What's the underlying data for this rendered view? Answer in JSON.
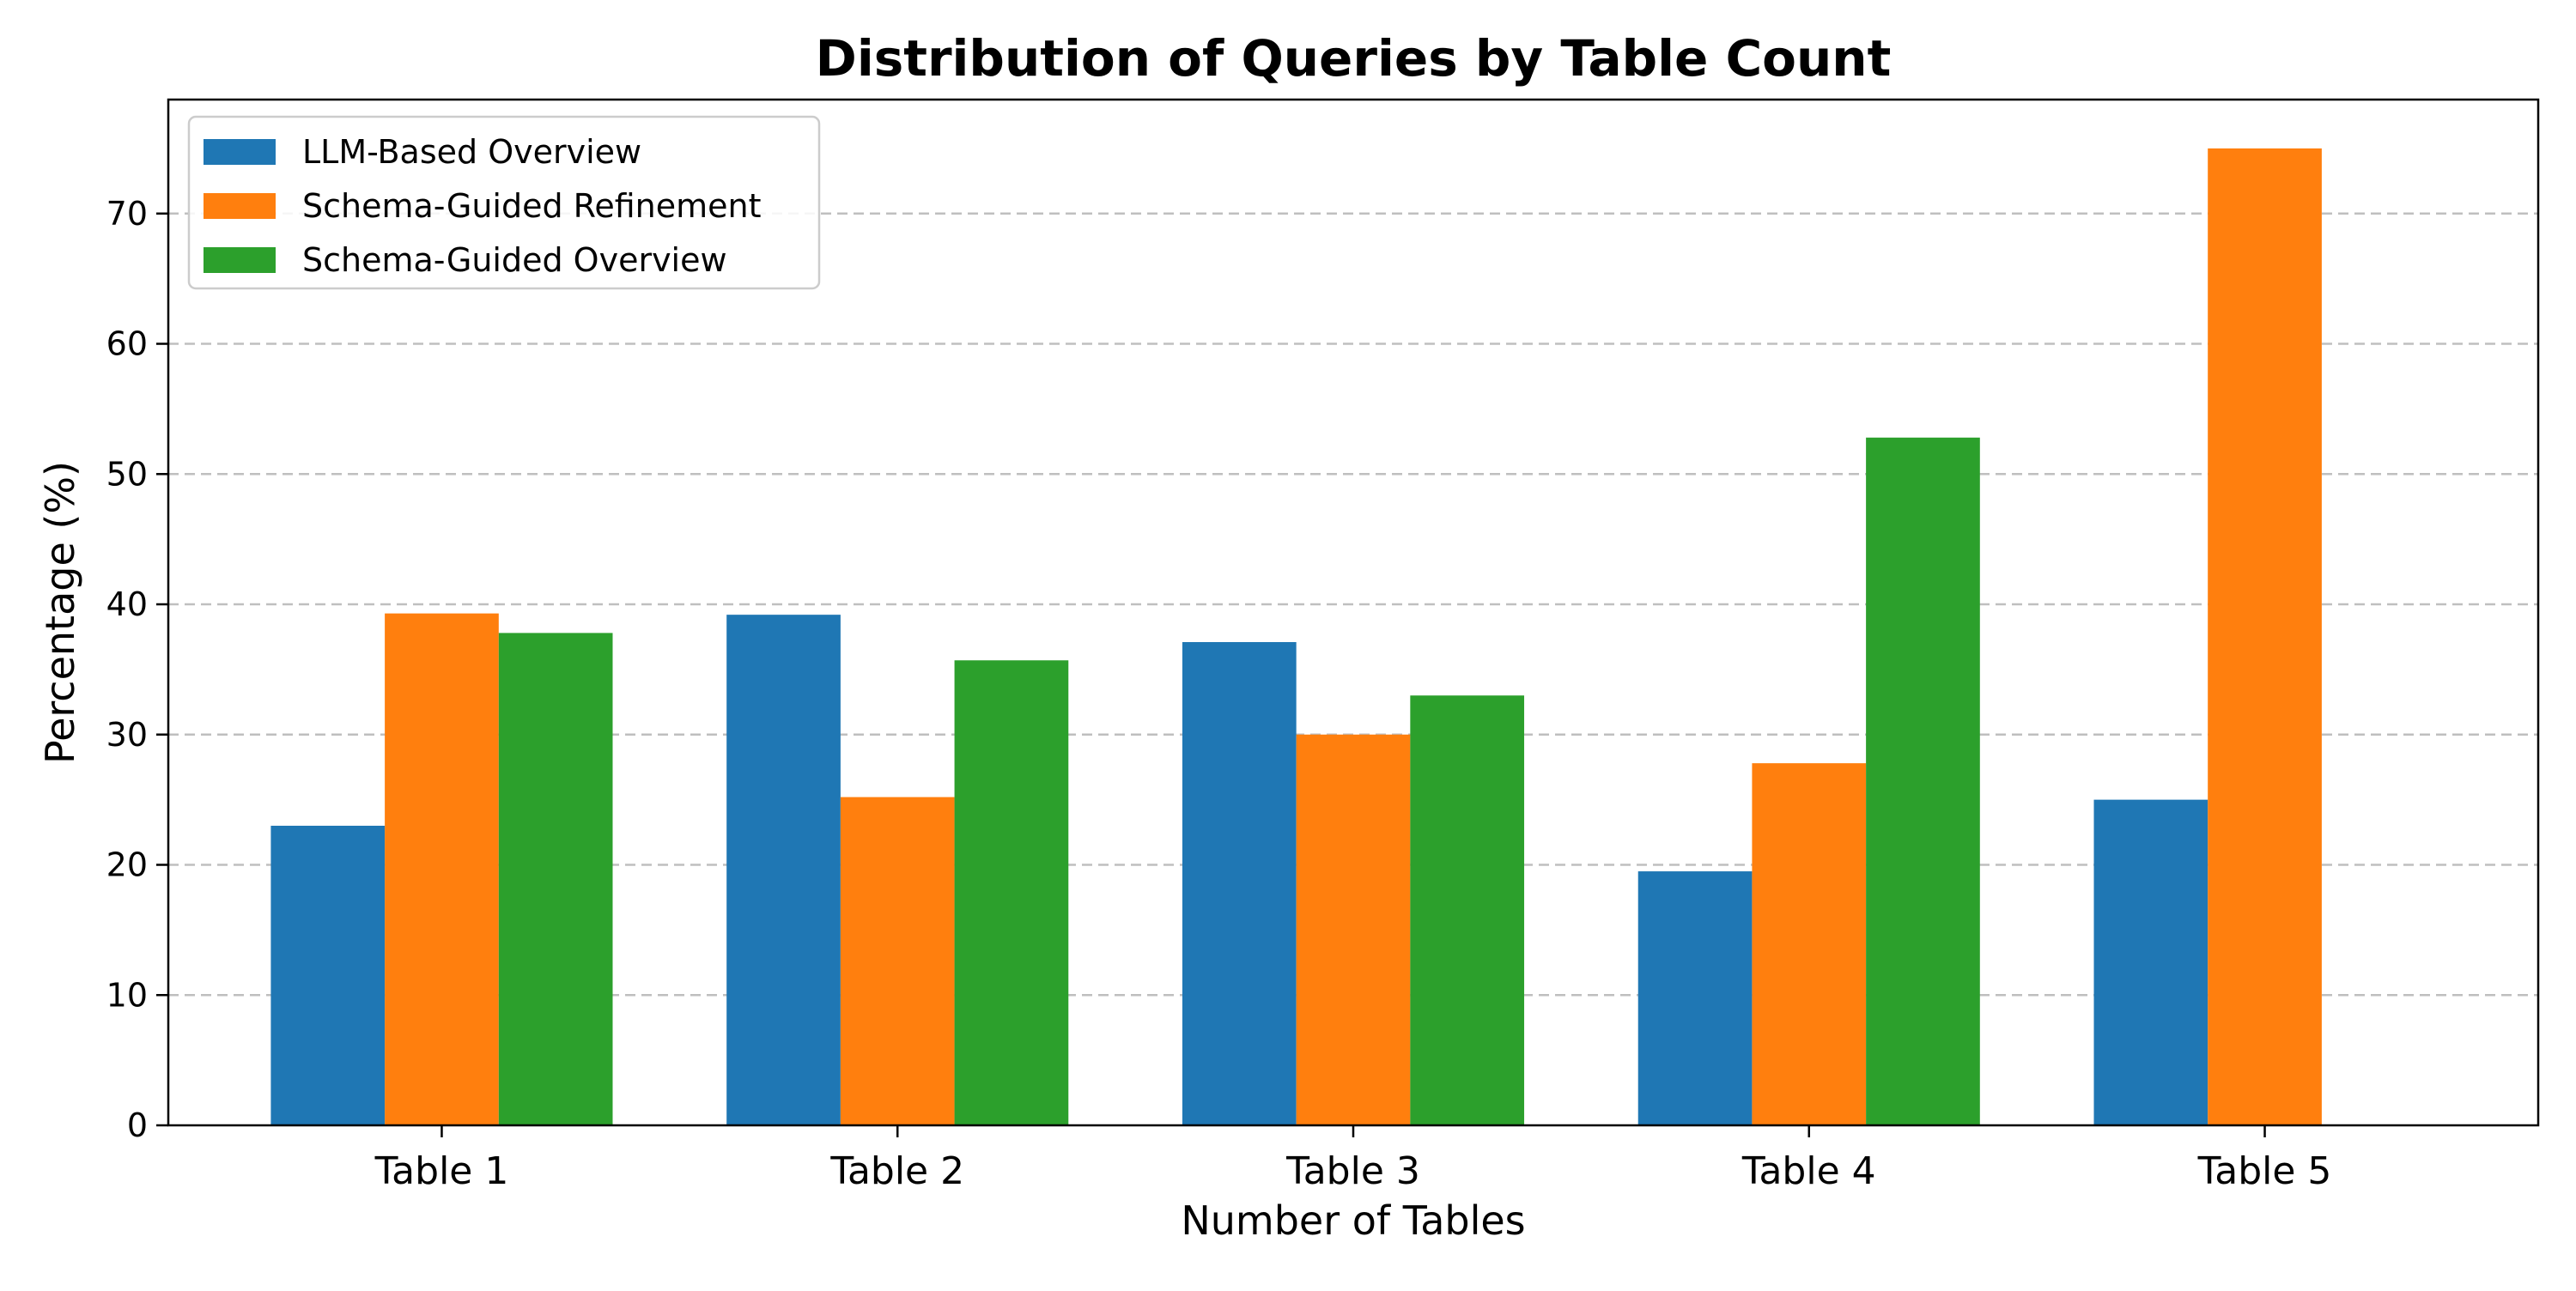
{
  "chart_data": {
    "type": "bar",
    "title": "Distribution of Queries by Table Count",
    "xlabel": "Number of Tables",
    "ylabel": "Percentage (%)",
    "categories": [
      "Table 1",
      "Table 2",
      "Table 3",
      "Table 4",
      "Table 5"
    ],
    "series": [
      {
        "name": "LLM-Based Overview",
        "color": "#1f77b4",
        "values": [
          23.0,
          39.2,
          37.1,
          19.5,
          25.0
        ]
      },
      {
        "name": "Schema-Guided Refinement",
        "color": "#ff7f0e",
        "values": [
          39.3,
          25.2,
          30.0,
          27.8,
          75.0
        ]
      },
      {
        "name": "Schema-Guided Overview",
        "color": "#2ca02c",
        "values": [
          37.8,
          35.7,
          33.0,
          52.8,
          0
        ]
      }
    ],
    "ylim": [
      0,
      78.75
    ],
    "yticks": [
      0,
      10,
      20,
      30,
      40,
      50,
      60,
      70
    ],
    "grid": "y-dashed",
    "legend_position": "top-left"
  }
}
